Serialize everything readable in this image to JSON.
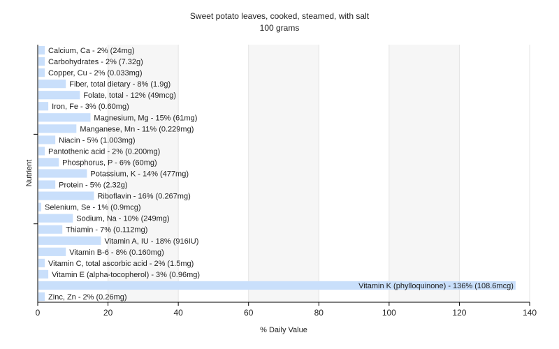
{
  "chart_data": {
    "type": "bar",
    "orientation": "horizontal",
    "title": "Sweet potato leaves, cooked, steamed, with salt",
    "subtitle": "100 grams",
    "xlabel": "% Daily Value",
    "ylabel": "Nutrient",
    "xlim": [
      0,
      140
    ],
    "xticks": [
      0,
      20,
      40,
      60,
      80,
      100,
      120,
      140
    ],
    "grid": true,
    "bar_color": "#c9dffb",
    "categories": [
      "Calcium, Ca - 2% (24mg)",
      "Carbohydrates - 2% (7.32g)",
      "Copper, Cu - 2% (0.033mg)",
      "Fiber, total dietary - 8% (1.9g)",
      "Folate, total - 12% (49mcg)",
      "Iron, Fe - 3% (0.60mg)",
      "Magnesium, Mg - 15% (61mg)",
      "Manganese, Mn - 11% (0.229mg)",
      "Niacin - 5% (1.003mg)",
      "Pantothenic acid - 2% (0.200mg)",
      "Phosphorus, P - 6% (60mg)",
      "Potassium, K - 14% (477mg)",
      "Protein - 5% (2.32g)",
      "Riboflavin - 16% (0.267mg)",
      "Selenium, Se - 1% (0.9mcg)",
      "Sodium, Na - 10% (249mg)",
      "Thiamin - 7% (0.112mg)",
      "Vitamin A, IU - 18% (916IU)",
      "Vitamin B-6 - 8% (0.160mg)",
      "Vitamin C, total ascorbic acid - 2% (1.5mg)",
      "Vitamin E (alpha-tocopherol) - 3% (0.96mg)",
      "Vitamin K (phylloquinone) - 136% (108.6mcg)",
      "Zinc, Zn - 2% (0.26mg)"
    ],
    "values": [
      2,
      2,
      2,
      8,
      12,
      3,
      15,
      11,
      5,
      2,
      6,
      14,
      5,
      16,
      1,
      10,
      7,
      18,
      8,
      2,
      3,
      136,
      2
    ]
  }
}
